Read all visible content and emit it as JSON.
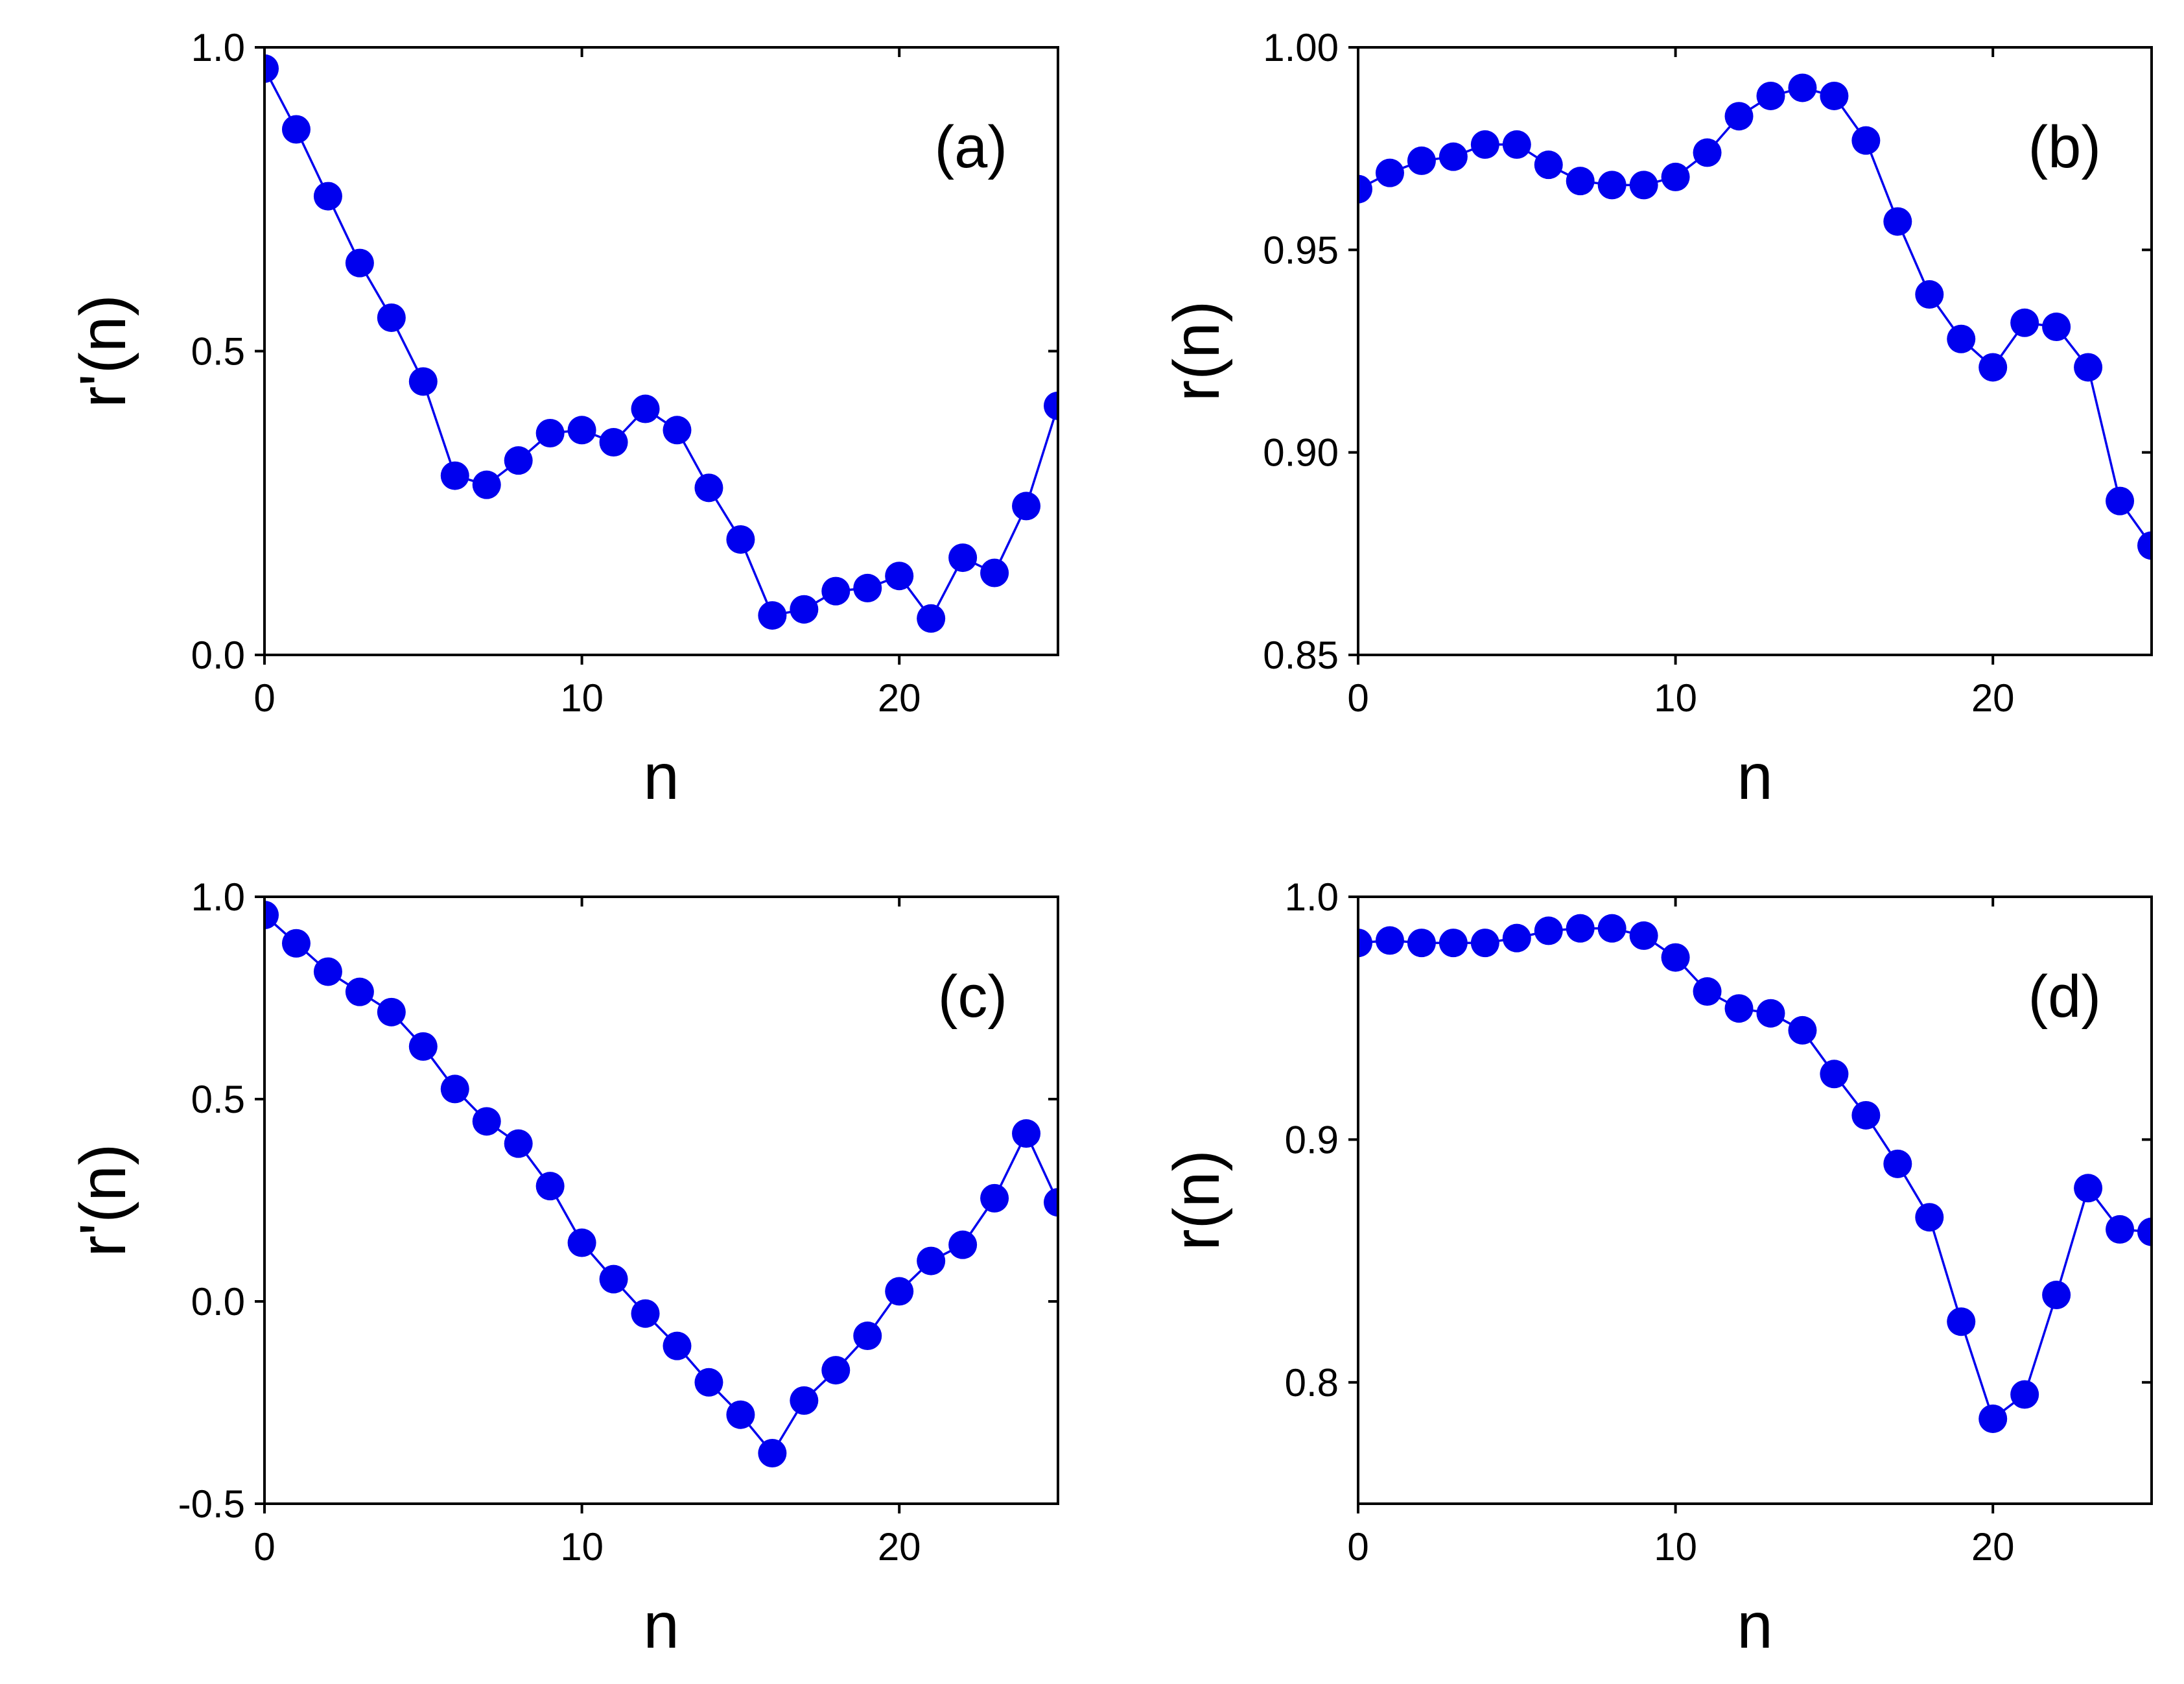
{
  "figure": {
    "marker_color": "#0000ee",
    "line_color": "#0000ee"
  },
  "chart_data": [
    {
      "panel": "(a)",
      "type": "line",
      "xlabel": "n",
      "ylabel": "r'(n)",
      "xlim": [
        0,
        25
      ],
      "ylim": [
        0.0,
        1.0
      ],
      "xticks": [
        0,
        10,
        20
      ],
      "xtick_labels": [
        "0",
        "10",
        "20"
      ],
      "yticks": [
        0.0,
        0.5,
        1.0
      ],
      "ytick_labels": [
        "0.0",
        "0.5",
        "1.0"
      ],
      "x": [
        0,
        1,
        2,
        3,
        4,
        5,
        6,
        7,
        8,
        9,
        10,
        11,
        12,
        13,
        14,
        15,
        16,
        17,
        18,
        19,
        20,
        21,
        22,
        23,
        24,
        25
      ],
      "values": [
        0.965,
        0.865,
        0.755,
        0.645,
        0.555,
        0.45,
        0.295,
        0.28,
        0.32,
        0.365,
        0.37,
        0.35,
        0.405,
        0.37,
        0.275,
        0.19,
        0.065,
        0.075,
        0.105,
        0.11,
        0.13,
        0.06,
        0.16,
        0.135,
        0.245,
        0.41
      ]
    },
    {
      "panel": "(b)",
      "type": "line",
      "xlabel": "n",
      "ylabel": "r(n)",
      "xlim": [
        0,
        25
      ],
      "ylim": [
        0.85,
        1.0
      ],
      "xticks": [
        0,
        10,
        20
      ],
      "xtick_labels": [
        "0",
        "10",
        "20"
      ],
      "yticks": [
        0.85,
        0.9,
        0.95,
        1.0
      ],
      "ytick_labels": [
        "0.85",
        "0.90",
        "0.95",
        "1.00"
      ],
      "x": [
        0,
        1,
        2,
        3,
        4,
        5,
        6,
        7,
        8,
        9,
        10,
        11,
        12,
        13,
        14,
        15,
        16,
        17,
        18,
        19,
        20,
        21,
        22,
        23,
        24,
        25
      ],
      "values": [
        0.965,
        0.969,
        0.972,
        0.973,
        0.976,
        0.976,
        0.971,
        0.967,
        0.966,
        0.966,
        0.968,
        0.974,
        0.983,
        0.988,
        0.99,
        0.988,
        0.977,
        0.957,
        0.939,
        0.928,
        0.921,
        0.932,
        0.931,
        0.921,
        0.888,
        0.877
      ]
    },
    {
      "panel": "(c)",
      "type": "line",
      "xlabel": "n",
      "ylabel": "r'(n)",
      "xlim": [
        0,
        25
      ],
      "ylim": [
        -0.5,
        1.0
      ],
      "xticks": [
        0,
        10,
        20
      ],
      "xtick_labels": [
        "0",
        "10",
        "20"
      ],
      "yticks": [
        -0.5,
        0.0,
        0.5,
        1.0
      ],
      "ytick_labels": [
        "-0.5",
        "0.0",
        "0.5",
        "1.0"
      ],
      "x": [
        0,
        1,
        2,
        3,
        4,
        5,
        6,
        7,
        8,
        9,
        10,
        11,
        12,
        13,
        14,
        15,
        16,
        17,
        18,
        19,
        20,
        21,
        22,
        23,
        24,
        25
      ],
      "values": [
        0.955,
        0.885,
        0.815,
        0.765,
        0.715,
        0.63,
        0.525,
        0.445,
        0.39,
        0.285,
        0.145,
        0.055,
        -0.03,
        -0.11,
        -0.2,
        -0.28,
        -0.375,
        -0.245,
        -0.17,
        -0.085,
        0.025,
        0.1,
        0.14,
        0.255,
        0.415,
        0.245
      ]
    },
    {
      "panel": "(d)",
      "type": "line",
      "xlabel": "n",
      "ylabel": "r(n)",
      "xlim": [
        0,
        25
      ],
      "ylim": [
        0.75,
        1.0
      ],
      "xticks": [
        0,
        10,
        20
      ],
      "xtick_labels": [
        "0",
        "10",
        "20"
      ],
      "yticks": [
        0.8,
        0.9,
        1.0
      ],
      "ytick_labels": [
        "0.8",
        "0.9",
        "1.0"
      ],
      "x": [
        0,
        1,
        2,
        3,
        4,
        5,
        6,
        7,
        8,
        9,
        10,
        11,
        12,
        13,
        14,
        15,
        16,
        17,
        18,
        19,
        20,
        21,
        22,
        23,
        24,
        25
      ],
      "values": [
        0.981,
        0.982,
        0.981,
        0.981,
        0.981,
        0.983,
        0.986,
        0.987,
        0.987,
        0.984,
        0.975,
        0.961,
        0.954,
        0.952,
        0.945,
        0.927,
        0.91,
        0.89,
        0.868,
        0.825,
        0.785,
        0.795,
        0.836,
        0.88,
        0.863,
        0.862
      ]
    }
  ]
}
